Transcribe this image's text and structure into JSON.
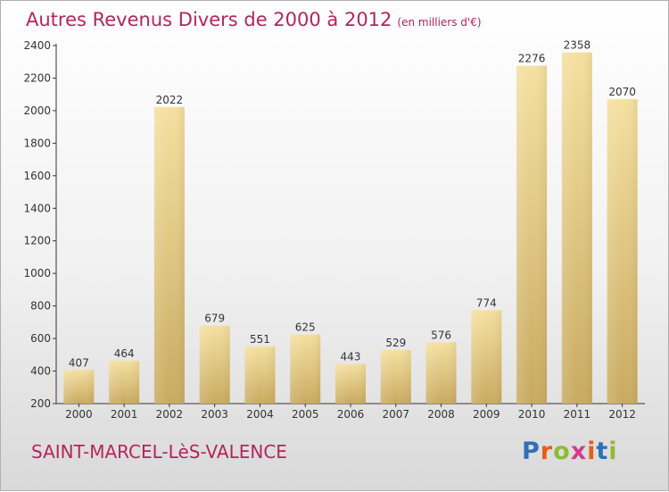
{
  "header": {
    "title": "Autres Revenus Divers de 2000 à 2012",
    "unit": "(en milliers d'€)"
  },
  "footer": {
    "city": "SAINT-MARCEL-LèS-VALENCE",
    "brand_letters": [
      "P",
      "r",
      "o",
      "x",
      "i",
      "t",
      "i"
    ],
    "brand_colors": [
      "#2f6fb7",
      "#e85c1a",
      "#8dbb32",
      "#d43c8c",
      "#e85c1a",
      "#2f6fb7",
      "#8dbb32"
    ]
  },
  "colors": {
    "title": "#b5245c",
    "bar_light": "#f5e0a0",
    "bar_dark": "#c8aa60"
  },
  "chart_data": {
    "type": "bar",
    "categories": [
      "2000",
      "2001",
      "2002",
      "2003",
      "2004",
      "2005",
      "2006",
      "2007",
      "2008",
      "2009",
      "2010",
      "2011",
      "2012"
    ],
    "values": [
      407,
      464,
      2022,
      679,
      551,
      625,
      443,
      529,
      576,
      774,
      2276,
      2358,
      2070
    ],
    "ylim": [
      200,
      2400
    ],
    "yticks": [
      200,
      400,
      600,
      800,
      1000,
      1200,
      1400,
      1600,
      1800,
      2000,
      2200,
      2400
    ],
    "grid": false
  }
}
